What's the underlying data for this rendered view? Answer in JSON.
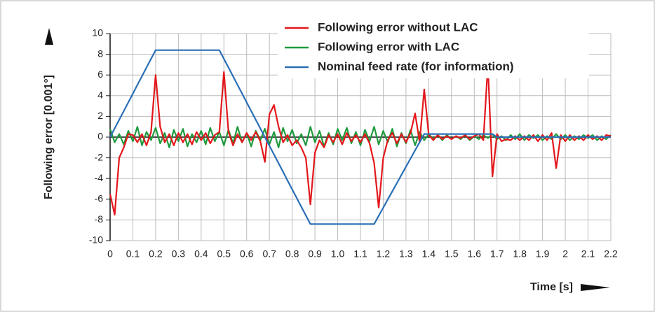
{
  "chart_data": {
    "type": "line",
    "ylabel": "Following error [0.001°]",
    "xlabel": "Time [s]",
    "x": [
      0,
      0.02,
      0.04,
      0.06,
      0.08,
      0.1,
      0.12,
      0.14,
      0.16,
      0.18,
      0.2,
      0.22,
      0.24,
      0.26,
      0.28,
      0.3,
      0.32,
      0.34,
      0.36,
      0.38,
      0.4,
      0.42,
      0.44,
      0.46,
      0.48,
      0.5,
      0.52,
      0.54,
      0.56,
      0.58,
      0.6,
      0.62,
      0.64,
      0.66,
      0.68,
      0.7,
      0.72,
      0.74,
      0.76,
      0.78,
      0.8,
      0.82,
      0.84,
      0.86,
      0.88,
      0.9,
      0.92,
      0.94,
      0.96,
      0.98,
      1,
      1.02,
      1.04,
      1.06,
      1.08,
      1.1,
      1.12,
      1.14,
      1.16,
      1.18,
      1.2,
      1.22,
      1.24,
      1.26,
      1.28,
      1.3,
      1.32,
      1.34,
      1.36,
      1.38,
      1.4,
      1.42,
      1.44,
      1.46,
      1.48,
      1.5,
      1.52,
      1.54,
      1.56,
      1.58,
      1.6,
      1.62,
      1.64,
      1.66,
      1.68,
      1.7,
      1.72,
      1.74,
      1.76,
      1.78,
      1.8,
      1.82,
      1.84,
      1.86,
      1.88,
      1.9,
      1.92,
      1.94,
      1.96,
      1.98,
      2,
      2.02,
      2.04,
      2.06,
      2.08,
      2.1,
      2.12,
      2.14,
      2.16,
      2.18,
      2.2
    ],
    "series": [
      {
        "name": "Following error without LAC",
        "color": "#e3171b",
        "values": [
          -5.5,
          -7.5,
          -2,
          -1,
          0.3,
          0.2,
          -0.5,
          0.3,
          -0.8,
          0.5,
          6,
          1,
          -0.5,
          0.3,
          -0.8,
          0.4,
          -0.5,
          0.3,
          -0.7,
          0.5,
          -0.3,
          0.4,
          -0.6,
          0.2,
          0.5,
          6.3,
          0.5,
          -0.8,
          0.3,
          -0.5,
          0.4,
          -0.3,
          0.5,
          -0.4,
          -2.4,
          2.2,
          3.1,
          1,
          -0.5,
          0.2,
          -0.8,
          -0.3,
          -1,
          -2,
          -6.5,
          -1.5,
          -0.3,
          -1,
          0.2,
          -0.5,
          0.3,
          -0.7,
          0.4,
          -0.4,
          0.2,
          -0.5,
          0.3,
          -0.6,
          -2.5,
          -6.8,
          -2,
          -0.3,
          0.4,
          -0.6,
          0.3,
          -0.5,
          0.4,
          2.3,
          -0.5,
          4.6,
          0.2,
          -0.3,
          0.2,
          -0.2,
          0.1,
          -0.2,
          0.1,
          -0.1,
          0.2,
          -0.2,
          0.1,
          0.3,
          -0.3,
          7,
          -3.8,
          0.3,
          -0.4,
          -0.2,
          -0.3,
          0.1,
          -0.3,
          0.1,
          -0.3,
          0.2,
          -0.4,
          0.2,
          -0.3,
          0.4,
          -3,
          0.2,
          -0.4,
          0.2,
          -0.3,
          0.1,
          -0.3,
          0.2,
          -0.2,
          0.1,
          -0.3,
          0.2,
          0.1
        ]
      },
      {
        "name": "Following error with LAC",
        "color": "#1e9a3c",
        "values": [
          0.8,
          -0.5,
          0.3,
          -0.7,
          0.6,
          -0.4,
          1.0,
          -0.8,
          0.5,
          -0.3,
          0.9,
          -0.6,
          0.4,
          -1.0,
          0.7,
          -0.4,
          0.8,
          -0.9,
          0.3,
          -0.5,
          0.6,
          -0.7,
          0.9,
          -0.4,
          0.5,
          -0.8,
          0.7,
          -0.6,
          1.0,
          -0.5,
          0.4,
          -0.9,
          0.6,
          -0.3,
          0.8,
          -0.7,
          0.5,
          -1.0,
          0.9,
          -0.4,
          0.7,
          -0.6,
          0.3,
          -0.8,
          1.0,
          -0.5,
          0.6,
          -0.9,
          0.4,
          -0.7,
          0.8,
          -0.3,
          0.9,
          -0.6,
          0.5,
          -0.8,
          0.7,
          -0.4,
          1.0,
          -0.7,
          0.6,
          -0.5,
          0.8,
          -0.9,
          0.4,
          -0.6,
          0.7,
          -0.8,
          0.5,
          -0.3,
          0.3,
          -0.2,
          0.2,
          -0.3,
          0.2,
          -0.2,
          0.1,
          -0.2,
          0.2,
          -0.3,
          0.1,
          -0.2,
          0.2,
          -0.1,
          0.3,
          -0.2,
          0.1,
          -0.3,
          0.2,
          -0.2,
          0.3,
          -0.3,
          0.2,
          -0.1,
          0.2,
          -0.3,
          0.1,
          -0.2,
          0.3,
          -0.2,
          0.2,
          -0.3,
          0.1,
          -0.2,
          0.2,
          -0.1,
          0.2,
          -0.3,
          0.1,
          -0.2,
          0.2
        ]
      },
      {
        "name": "Nominal feed rate (for information)",
        "color": "#2a6fb5",
        "values": [
          0,
          0.84,
          1.68,
          2.52,
          3.36,
          4.2,
          5.04,
          5.88,
          6.72,
          7.56,
          8.4,
          8.4,
          8.4,
          8.4,
          8.4,
          8.4,
          8.4,
          8.4,
          8.4,
          8.4,
          8.4,
          8.4,
          8.4,
          8.4,
          8.4,
          7.56,
          6.72,
          5.88,
          5.04,
          4.2,
          3.36,
          2.52,
          1.68,
          0.84,
          0,
          -0.84,
          -1.68,
          -2.52,
          -3.36,
          -4.2,
          -5.04,
          -5.88,
          -6.72,
          -7.56,
          -8.4,
          -8.4,
          -8.4,
          -8.4,
          -8.4,
          -8.4,
          -8.4,
          -8.4,
          -8.4,
          -8.4,
          -8.4,
          -8.4,
          -8.4,
          -8.4,
          -8.4,
          -7.61,
          -6.82,
          -6.03,
          -5.24,
          -4.45,
          -3.65,
          -2.86,
          -2.07,
          -1.28,
          -0.49,
          0.3,
          0.3,
          0.3,
          0.3,
          0.3,
          0.3,
          0.3,
          0.3,
          0.3,
          0.3,
          0.3,
          0.3,
          0.3,
          0.3,
          0.3,
          0.3,
          0,
          0,
          0,
          0,
          0,
          0,
          0,
          0,
          0,
          0,
          0,
          0,
          0,
          0,
          0,
          0,
          0,
          0,
          0,
          0,
          0,
          0,
          0,
          0,
          0,
          0
        ]
      }
    ],
    "xlim": [
      0,
      2.2
    ],
    "xticks": [
      0,
      0.1,
      0.2,
      0.3,
      0.4,
      0.5,
      0.6,
      0.7,
      0.8,
      0.9,
      {
        "value": 1,
        "label": "1.0"
      },
      1.1,
      1.2,
      1.3,
      1.4,
      1.5,
      1.6,
      1.7,
      1.8,
      1.9,
      2,
      2.1,
      2.2
    ],
    "ylim": [
      -10,
      10
    ],
    "yticks": [
      -10,
      -8,
      -6,
      -4,
      -2,
      0,
      2,
      4,
      6,
      8,
      10
    ],
    "grid": true
  }
}
